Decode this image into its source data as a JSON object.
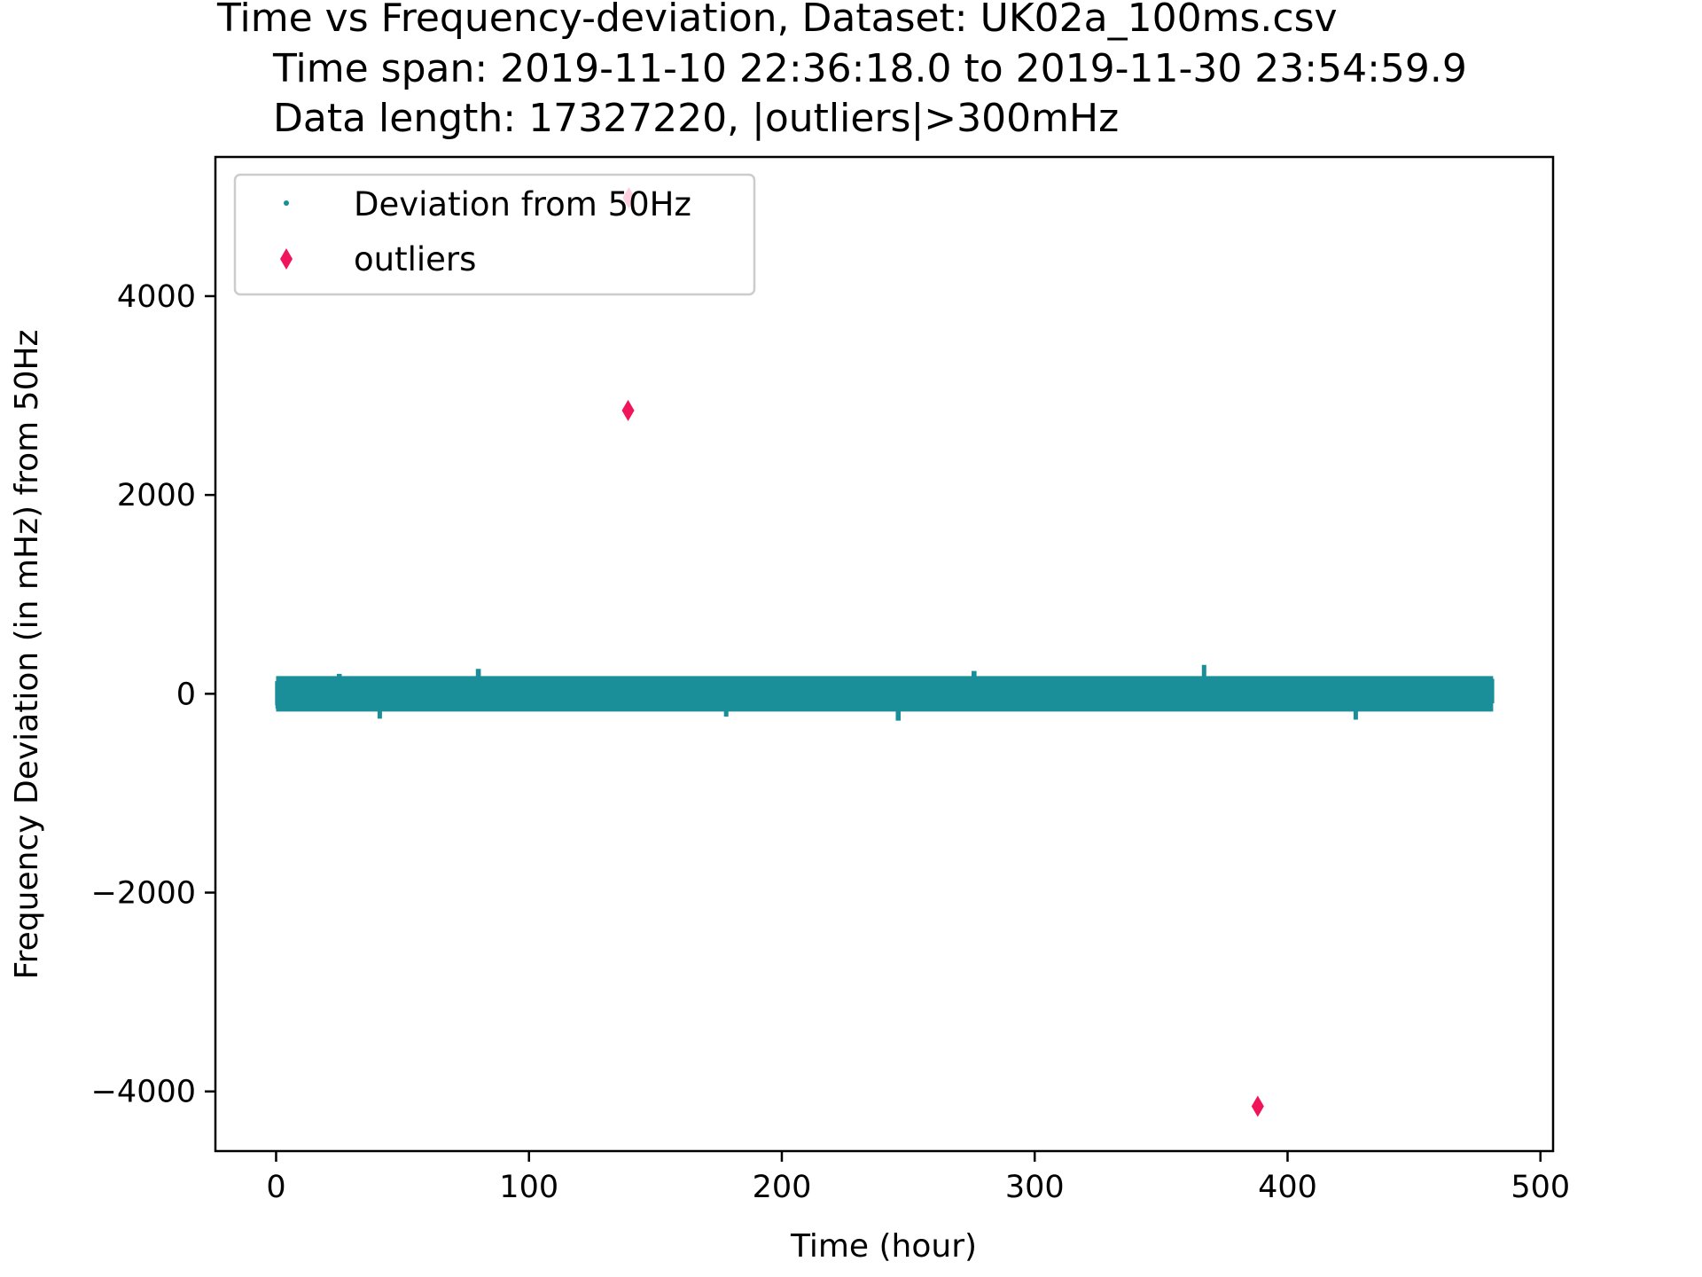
{
  "chart_data": {
    "type": "scatter",
    "title_lines": [
      "Time vs Frequency-deviation, Dataset: UK02a_100ms.csv",
      "Time span: 2019-11-10 22:36:18.0 to 2019-11-30 23:54:59.9",
      "Data length: 17327220, |outliers|>300mHz"
    ],
    "xlabel": "Time (hour)",
    "ylabel": "Frequency Deviation (in mHz) from 50Hz",
    "xlim": [
      -24,
      505
    ],
    "ylim": [
      -4600,
      5400
    ],
    "xticks": [
      0,
      100,
      200,
      300,
      400,
      500
    ],
    "xtick_labels": [
      "0",
      "100",
      "200",
      "300",
      "400",
      "500"
    ],
    "yticks": [
      -4000,
      -2000,
      0,
      2000,
      4000
    ],
    "ytick_labels": [
      "−4000",
      "−2000",
      "0",
      "2000",
      "4000"
    ],
    "grid": false,
    "legend_position": "upper-left",
    "series": [
      {
        "name": "Deviation from 50Hz",
        "color": "#1a8f99",
        "marker": "point",
        "x_range": [
          0,
          481.3
        ],
        "typical_range": [
          -150,
          150
        ],
        "extremes": [
          {
            "x": 25,
            "y": 200
          },
          {
            "x": 41,
            "y": -250
          },
          {
            "x": 80,
            "y": 250
          },
          {
            "x": 178,
            "y": -230
          },
          {
            "x": 246,
            "y": -270
          },
          {
            "x": 276,
            "y": 230
          },
          {
            "x": 367,
            "y": 290
          },
          {
            "x": 427,
            "y": -260
          }
        ]
      },
      {
        "name": "outliers",
        "color": "#f0145a",
        "marker": "diamond",
        "points": [
          {
            "x": 139.5,
            "y": 4990
          },
          {
            "x": 139.2,
            "y": 2850
          },
          {
            "x": 388.2,
            "y": -4150
          }
        ]
      }
    ]
  }
}
